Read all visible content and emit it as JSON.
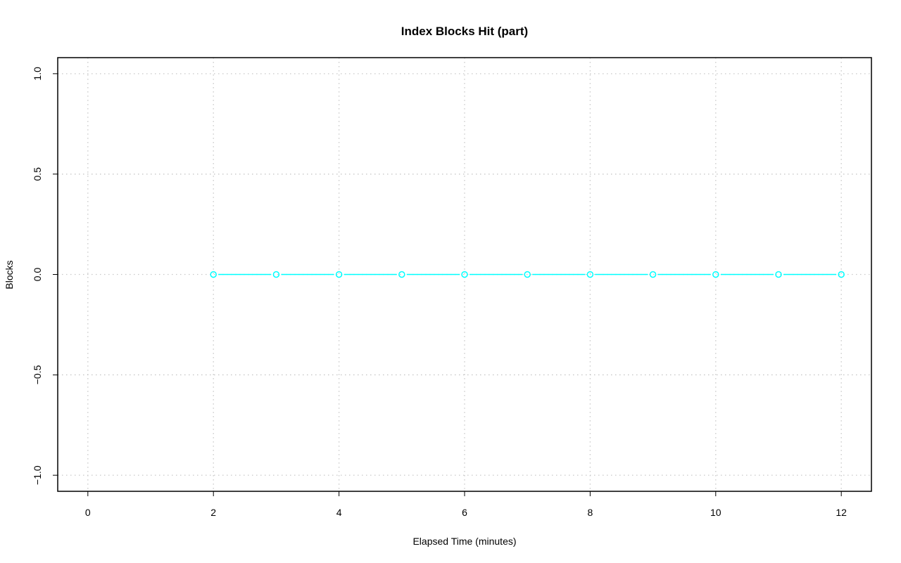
{
  "chart_data": {
    "type": "line",
    "title": "Index Blocks Hit (part)",
    "xlabel": "Elapsed Time (minutes)",
    "ylabel": "Blocks",
    "xlim": [
      -0.48,
      12.48
    ],
    "ylim": [
      -1.08,
      1.08
    ],
    "xticks": [
      0,
      2,
      4,
      6,
      8,
      10,
      12
    ],
    "yticks": [
      -1.0,
      -0.5,
      0.0,
      0.5,
      1.0
    ],
    "xtick_labels": [
      "0",
      "2",
      "4",
      "6",
      "8",
      "10",
      "12"
    ],
    "ytick_labels": [
      "−1.0",
      "−0.5",
      "0.0",
      "0.5",
      "1.0"
    ],
    "grid": true,
    "series": [
      {
        "color": "#00ffff",
        "marker": "open-circle",
        "x": [
          2,
          3,
          4,
          5,
          6,
          7,
          8,
          9,
          10,
          11,
          12
        ],
        "y": [
          0,
          0,
          0,
          0,
          0,
          0,
          0,
          0,
          0,
          0,
          0
        ]
      }
    ]
  }
}
